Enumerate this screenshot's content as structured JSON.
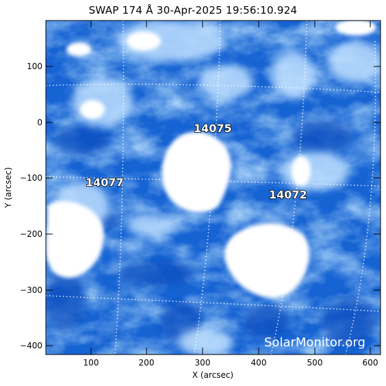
{
  "image": {
    "title": "SWAP 174 Å 30-Apr-2025 19:56:10.924",
    "x_axis": {
      "label": "X (arcsec)",
      "range": [
        20,
        620
      ],
      "ticks": [
        "100",
        "200",
        "300",
        "400",
        "500",
        "600"
      ]
    },
    "y_axis": {
      "label": "Y (arcsec)",
      "range": [
        -415,
        182
      ],
      "ticks": [
        "100",
        "0",
        "−100",
        "−200",
        "−300",
        "−400"
      ]
    },
    "regions": [
      {
        "id": "14075",
        "x": 330,
        "y": -10
      },
      {
        "id": "14077",
        "x": 110,
        "y": -105
      },
      {
        "id": "14072",
        "x": 475,
        "y": -130
      }
    ],
    "watermark": "SolarMonitor.org",
    "colors": {
      "dark": "#0a4fc0",
      "mid": "#3d8cec",
      "light": "#bfe0ff",
      "saturated": "#ffffff"
    }
  }
}
